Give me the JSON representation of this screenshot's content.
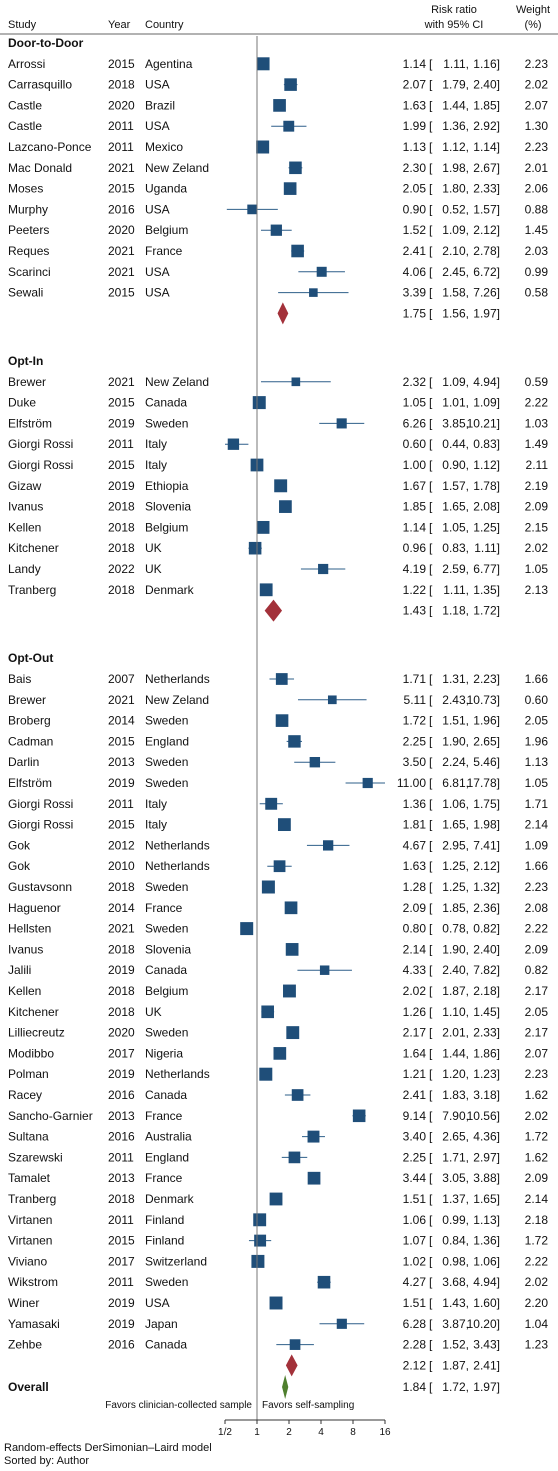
{
  "chart_data": {
    "type": "forest",
    "headers": {
      "study": "Study",
      "year": "Year",
      "country": "Country",
      "rr_line1": "Risk ratio",
      "rr_line2": "with 95% CI",
      "weight_line1": "Weight",
      "weight_line2": "(%)"
    },
    "x_axis": {
      "scale": "log2",
      "range": [
        0.5,
        16
      ],
      "ticks": [
        0.5,
        1,
        2,
        4,
        8,
        16
      ],
      "tick_labels": [
        "1/2",
        "1",
        "2",
        "4",
        "8",
        "16"
      ],
      "reference_line": 1
    },
    "favors_left": "Favors clinician-collected sample",
    "favors_right": "Favors self-sampling",
    "groups": [
      {
        "name": "Door-to-Door",
        "studies": [
          {
            "study": "Arrossi",
            "year": "2015",
            "country": "Agentina",
            "rr": 1.14,
            "lo": 1.11,
            "hi": 1.16,
            "rr_text": "1.14",
            "lo_text": "1.11",
            "hi_text": "1.16",
            "weight": "2.23"
          },
          {
            "study": "Carrasquillo",
            "year": "2018",
            "country": "USA",
            "rr": 2.07,
            "lo": 1.79,
            "hi": 2.4,
            "rr_text": "2.07",
            "lo_text": "1.79",
            "hi_text": "2.40",
            "weight": "2.02"
          },
          {
            "study": "Castle",
            "year": "2020",
            "country": "Brazil",
            "rr": 1.63,
            "lo": 1.44,
            "hi": 1.85,
            "rr_text": "1.63",
            "lo_text": "1.44",
            "hi_text": "1.85",
            "weight": "2.07"
          },
          {
            "study": "Castle",
            "year": "2011",
            "country": "USA",
            "rr": 1.99,
            "lo": 1.36,
            "hi": 2.92,
            "rr_text": "1.99",
            "lo_text": "1.36",
            "hi_text": "2.92",
            "weight": "1.30"
          },
          {
            "study": "Lazcano-Ponce",
            "year": "2011",
            "country": "Mexico",
            "rr": 1.13,
            "lo": 1.12,
            "hi": 1.14,
            "rr_text": "1.13",
            "lo_text": "1.12",
            "hi_text": "1.14",
            "weight": "2.23"
          },
          {
            "study": "Mac Donald",
            "year": "2021",
            "country": "New Zeland",
            "rr": 2.3,
            "lo": 1.98,
            "hi": 2.67,
            "rr_text": "2.30",
            "lo_text": "1.98",
            "hi_text": "2.67",
            "weight": "2.01"
          },
          {
            "study": "Moses",
            "year": "2015",
            "country": "Uganda",
            "rr": 2.05,
            "lo": 1.8,
            "hi": 2.33,
            "rr_text": "2.05",
            "lo_text": "1.80",
            "hi_text": "2.33",
            "weight": "2.06"
          },
          {
            "study": "Murphy",
            "year": "2016",
            "country": "USA",
            "rr": 0.9,
            "lo": 0.52,
            "hi": 1.57,
            "rr_text": "0.90",
            "lo_text": "0.52",
            "hi_text": "1.57",
            "weight": "0.88"
          },
          {
            "study": "Peeters",
            "year": "2020",
            "country": "Belgium",
            "rr": 1.52,
            "lo": 1.09,
            "hi": 2.12,
            "rr_text": "1.52",
            "lo_text": "1.09",
            "hi_text": "2.12",
            "weight": "1.45"
          },
          {
            "study": "Reques",
            "year": "2021",
            "country": "France",
            "rr": 2.41,
            "lo": 2.1,
            "hi": 2.78,
            "rr_text": "2.41",
            "lo_text": "2.10",
            "hi_text": "2.78",
            "weight": "2.03"
          },
          {
            "study": "Scarinci",
            "year": "2021",
            "country": "USA",
            "rr": 4.06,
            "lo": 2.45,
            "hi": 6.72,
            "rr_text": "4.06",
            "lo_text": "2.45",
            "hi_text": "6.72",
            "weight": "0.99"
          },
          {
            "study": "Sewali",
            "year": "2015",
            "country": "USA",
            "rr": 3.39,
            "lo": 1.58,
            "hi": 7.26,
            "rr_text": "3.39",
            "lo_text": "1.58",
            "hi_text": "7.26",
            "weight": "0.58"
          }
        ],
        "pooled": {
          "rr": 1.75,
          "lo": 1.56,
          "hi": 1.97,
          "rr_text": "1.75",
          "lo_text": "1.56",
          "hi_text": "1.97"
        }
      },
      {
        "name": "Opt-In",
        "studies": [
          {
            "study": "Brewer",
            "year": "2021",
            "country": "New Zeland",
            "rr": 2.32,
            "lo": 1.09,
            "hi": 4.94,
            "rr_text": "2.32",
            "lo_text": "1.09",
            "hi_text": "4.94",
            "weight": "0.59"
          },
          {
            "study": "Duke",
            "year": "2015",
            "country": "Canada",
            "rr": 1.05,
            "lo": 1.01,
            "hi": 1.09,
            "rr_text": "1.05",
            "lo_text": "1.01",
            "hi_text": "1.09",
            "weight": "2.22"
          },
          {
            "study": "Elfström",
            "year": "2019",
            "country": "Sweden",
            "rr": 6.26,
            "lo": 3.85,
            "hi": 10.21,
            "rr_text": "6.26",
            "lo_text": "3.85",
            "hi_text": "10.21",
            "weight": "1.03"
          },
          {
            "study": "Giorgi Rossi",
            "year": "2011",
            "country": "Italy",
            "rr": 0.6,
            "lo": 0.44,
            "hi": 0.83,
            "rr_text": "0.60",
            "lo_text": "0.44",
            "hi_text": "0.83",
            "weight": "1.49"
          },
          {
            "study": "Giorgi Rossi",
            "year": "2015",
            "country": "Italy",
            "rr": 1.0,
            "lo": 0.9,
            "hi": 1.12,
            "rr_text": "1.00",
            "lo_text": "0.90",
            "hi_text": "1.12",
            "weight": "2.11"
          },
          {
            "study": "Gizaw",
            "year": "2019",
            "country": "Ethiopia",
            "rr": 1.67,
            "lo": 1.57,
            "hi": 1.78,
            "rr_text": "1.67",
            "lo_text": "1.57",
            "hi_text": "1.78",
            "weight": "2.19"
          },
          {
            "study": "Ivanus",
            "year": "2018",
            "country": "Slovenia",
            "rr": 1.85,
            "lo": 1.65,
            "hi": 2.08,
            "rr_text": "1.85",
            "lo_text": "1.65",
            "hi_text": "2.08",
            "weight": "2.09"
          },
          {
            "study": "Kellen",
            "year": "2018",
            "country": "Belgium",
            "rr": 1.14,
            "lo": 1.05,
            "hi": 1.25,
            "rr_text": "1.14",
            "lo_text": "1.05",
            "hi_text": "1.25",
            "weight": "2.15"
          },
          {
            "study": "Kitchener",
            "year": "2018",
            "country": "UK",
            "rr": 0.96,
            "lo": 0.83,
            "hi": 1.11,
            "rr_text": "0.96",
            "lo_text": "0.83",
            "hi_text": "1.11",
            "weight": "2.02"
          },
          {
            "study": "Landy",
            "year": "2022",
            "country": "UK",
            "rr": 4.19,
            "lo": 2.59,
            "hi": 6.77,
            "rr_text": "4.19",
            "lo_text": "2.59",
            "hi_text": "6.77",
            "weight": "1.05"
          },
          {
            "study": "Tranberg",
            "year": "2018",
            "country": "Denmark",
            "rr": 1.22,
            "lo": 1.11,
            "hi": 1.35,
            "rr_text": "1.22",
            "lo_text": "1.11",
            "hi_text": "1.35",
            "weight": "2.13"
          }
        ],
        "pooled": {
          "rr": 1.43,
          "lo": 1.18,
          "hi": 1.72,
          "rr_text": "1.43",
          "lo_text": "1.18",
          "hi_text": "1.72"
        }
      },
      {
        "name": "Opt-Out",
        "studies": [
          {
            "study": "Bais",
            "year": "2007",
            "country": "Netherlands",
            "rr": 1.71,
            "lo": 1.31,
            "hi": 2.23,
            "rr_text": "1.71",
            "lo_text": "1.31",
            "hi_text": "2.23",
            "weight": "1.66"
          },
          {
            "study": "Brewer",
            "year": "2021",
            "country": "New Zeland",
            "rr": 5.11,
            "lo": 2.43,
            "hi": 10.73,
            "rr_text": "5.11",
            "lo_text": "2.43",
            "hi_text": "10.73",
            "weight": "0.60"
          },
          {
            "study": "Broberg",
            "year": "2014",
            "country": "Sweden",
            "rr": 1.72,
            "lo": 1.51,
            "hi": 1.96,
            "rr_text": "1.72",
            "lo_text": "1.51",
            "hi_text": "1.96",
            "weight": "2.05"
          },
          {
            "study": "Cadman",
            "year": "2015",
            "country": "England",
            "rr": 2.25,
            "lo": 1.9,
            "hi": 2.65,
            "rr_text": "2.25",
            "lo_text": "1.90",
            "hi_text": "2.65",
            "weight": "1.96"
          },
          {
            "study": "Darlin",
            "year": "2013",
            "country": "Sweden",
            "rr": 3.5,
            "lo": 2.24,
            "hi": 5.46,
            "rr_text": "3.50",
            "lo_text": "2.24",
            "hi_text": "5.46",
            "weight": "1.13"
          },
          {
            "study": "Elfström",
            "year": "2019",
            "country": "Sweden",
            "rr": 11.0,
            "lo": 6.81,
            "hi": 17.78,
            "rr_text": "11.00",
            "lo_text": "6.81",
            "hi_text": "17.78",
            "weight": "1.05"
          },
          {
            "study": "Giorgi Rossi",
            "year": "2011",
            "country": "Italy",
            "rr": 1.36,
            "lo": 1.06,
            "hi": 1.75,
            "rr_text": "1.36",
            "lo_text": "1.06",
            "hi_text": "1.75",
            "weight": "1.71"
          },
          {
            "study": "Giorgi Rossi",
            "year": "2015",
            "country": "Italy",
            "rr": 1.81,
            "lo": 1.65,
            "hi": 1.98,
            "rr_text": "1.81",
            "lo_text": "1.65",
            "hi_text": "1.98",
            "weight": "2.14"
          },
          {
            "study": "Gok",
            "year": "2012",
            "country": "Netherlands",
            "rr": 4.67,
            "lo": 2.95,
            "hi": 7.41,
            "rr_text": "4.67",
            "lo_text": "2.95",
            "hi_text": "7.41",
            "weight": "1.09"
          },
          {
            "study": "Gok",
            "year": "2010",
            "country": "Netherlands",
            "rr": 1.63,
            "lo": 1.25,
            "hi": 2.12,
            "rr_text": "1.63",
            "lo_text": "1.25",
            "hi_text": "2.12",
            "weight": "1.66"
          },
          {
            "study": "Gustavsonn",
            "year": "2018",
            "country": "Sweden",
            "rr": 1.28,
            "lo": 1.25,
            "hi": 1.32,
            "rr_text": "1.28",
            "lo_text": "1.25",
            "hi_text": "1.32",
            "weight": "2.23"
          },
          {
            "study": "Haguenor",
            "year": "2014",
            "country": "France",
            "rr": 2.09,
            "lo": 1.85,
            "hi": 2.36,
            "rr_text": "2.09",
            "lo_text": "1.85",
            "hi_text": "2.36",
            "weight": "2.08"
          },
          {
            "study": "Hellsten",
            "year": "2021",
            "country": "Sweden",
            "rr": 0.8,
            "lo": 0.78,
            "hi": 0.82,
            "rr_text": "0.80",
            "lo_text": "0.78",
            "hi_text": "0.82",
            "weight": "2.22"
          },
          {
            "study": "Ivanus",
            "year": "2018",
            "country": "Slovenia",
            "rr": 2.14,
            "lo": 1.9,
            "hi": 2.4,
            "rr_text": "2.14",
            "lo_text": "1.90",
            "hi_text": "2.40",
            "weight": "2.09"
          },
          {
            "study": "Jalili",
            "year": "2019",
            "country": "Canada",
            "rr": 4.33,
            "lo": 2.4,
            "hi": 7.82,
            "rr_text": "4.33",
            "lo_text": "2.40",
            "hi_text": "7.82",
            "weight": "0.82"
          },
          {
            "study": "Kellen",
            "year": "2018",
            "country": "Belgium",
            "rr": 2.02,
            "lo": 1.87,
            "hi": 2.18,
            "rr_text": "2.02",
            "lo_text": "1.87",
            "hi_text": "2.18",
            "weight": "2.17"
          },
          {
            "study": "Kitchener",
            "year": "2018",
            "country": "UK",
            "rr": 1.26,
            "lo": 1.1,
            "hi": 1.45,
            "rr_text": "1.26",
            "lo_text": "1.10",
            "hi_text": "1.45",
            "weight": "2.05"
          },
          {
            "study": "Lilliecreutz",
            "year": "2020",
            "country": "Sweden",
            "rr": 2.17,
            "lo": 2.01,
            "hi": 2.33,
            "rr_text": "2.17",
            "lo_text": "2.01",
            "hi_text": "2.33",
            "weight": "2.17"
          },
          {
            "study": "Modibbo",
            "year": "2017",
            "country": "Nigeria",
            "rr": 1.64,
            "lo": 1.44,
            "hi": 1.86,
            "rr_text": "1.64",
            "lo_text": "1.44",
            "hi_text": "1.86",
            "weight": "2.07"
          },
          {
            "study": "Polman",
            "year": "2019",
            "country": "Netherlands",
            "rr": 1.21,
            "lo": 1.2,
            "hi": 1.23,
            "rr_text": "1.21",
            "lo_text": "1.20",
            "hi_text": "1.23",
            "weight": "2.23"
          },
          {
            "study": "Racey",
            "year": "2016",
            "country": "Canada",
            "rr": 2.41,
            "lo": 1.83,
            "hi": 3.18,
            "rr_text": "2.41",
            "lo_text": "1.83",
            "hi_text": "3.18",
            "weight": "1.62"
          },
          {
            "study": "Sancho-Garnier",
            "year": "2013",
            "country": "France",
            "rr": 9.14,
            "lo": 7.9,
            "hi": 10.56,
            "rr_text": "9.14",
            "lo_text": "7.90",
            "hi_text": "10.56",
            "weight": "2.02"
          },
          {
            "study": "Sultana",
            "year": "2016",
            "country": "Australia",
            "rr": 3.4,
            "lo": 2.65,
            "hi": 4.36,
            "rr_text": "3.40",
            "lo_text": "2.65",
            "hi_text": "4.36",
            "weight": "1.72"
          },
          {
            "study": "Szarewski",
            "year": "2011",
            "country": "England",
            "rr": 2.25,
            "lo": 1.71,
            "hi": 2.97,
            "rr_text": "2.25",
            "lo_text": "1.71",
            "hi_text": "2.97",
            "weight": "1.62"
          },
          {
            "study": "Tamalet",
            "year": "2013",
            "country": "France",
            "rr": 3.44,
            "lo": 3.05,
            "hi": 3.88,
            "rr_text": "3.44",
            "lo_text": "3.05",
            "hi_text": "3.88",
            "weight": "2.09"
          },
          {
            "study": "Tranberg",
            "year": "2018",
            "country": "Denmark",
            "rr": 1.51,
            "lo": 1.37,
            "hi": 1.65,
            "rr_text": "1.51",
            "lo_text": "1.37",
            "hi_text": "1.65",
            "weight": "2.14"
          },
          {
            "study": "Virtanen",
            "year": "2011",
            "country": "Finland",
            "rr": 1.06,
            "lo": 0.99,
            "hi": 1.13,
            "rr_text": "1.06",
            "lo_text": "0.99",
            "hi_text": "1.13",
            "weight": "2.18"
          },
          {
            "study": "Virtanen",
            "year": "2015",
            "country": "Finland",
            "rr": 1.07,
            "lo": 0.84,
            "hi": 1.36,
            "rr_text": "1.07",
            "lo_text": "0.84",
            "hi_text": "1.36",
            "weight": "1.72"
          },
          {
            "study": "Viviano",
            "year": "2017",
            "country": "Switzerland",
            "rr": 1.02,
            "lo": 0.98,
            "hi": 1.06,
            "rr_text": "1.02",
            "lo_text": "0.98",
            "hi_text": "1.06",
            "weight": "2.22"
          },
          {
            "study": "Wikstrom",
            "year": "2011",
            "country": "Sweden",
            "rr": 4.27,
            "lo": 3.68,
            "hi": 4.94,
            "rr_text": "4.27",
            "lo_text": "3.68",
            "hi_text": "4.94",
            "weight": "2.02"
          },
          {
            "study": "Winer",
            "year": "2019",
            "country": "USA",
            "rr": 1.51,
            "lo": 1.43,
            "hi": 1.6,
            "rr_text": "1.51",
            "lo_text": "1.43",
            "hi_text": "1.60",
            "weight": "2.20"
          },
          {
            "study": "Yamasaki",
            "year": "2019",
            "country": "Japan",
            "rr": 6.28,
            "lo": 3.87,
            "hi": 10.2,
            "rr_text": "6.28",
            "lo_text": "3.87",
            "hi_text": "10.20",
            "weight": "1.04"
          },
          {
            "study": "Zehbe",
            "year": "2016",
            "country": "Canada",
            "rr": 2.28,
            "lo": 1.52,
            "hi": 3.43,
            "rr_text": "2.28",
            "lo_text": "1.52",
            "hi_text": "3.43",
            "weight": "1.23"
          }
        ],
        "pooled": {
          "rr": 2.12,
          "lo": 1.87,
          "hi": 2.41,
          "rr_text": "2.12",
          "lo_text": "1.87",
          "hi_text": "2.41"
        }
      }
    ],
    "overall": {
      "label": "Overall",
      "rr": 1.84,
      "lo": 1.72,
      "hi": 1.97,
      "rr_text": "1.84",
      "lo_text": "1.72",
      "hi_text": "1.97"
    },
    "colors": {
      "study_marker": "#1f4e79",
      "ci_line": "#2e5f8a",
      "subgroup_diamond": "#a3313a",
      "overall_diamond": "#4f7f2e",
      "reference_line": "#777777"
    },
    "footnotes": [
      "Random-effects DerSimonian–Laird model",
      "Sorted by: Author"
    ]
  }
}
